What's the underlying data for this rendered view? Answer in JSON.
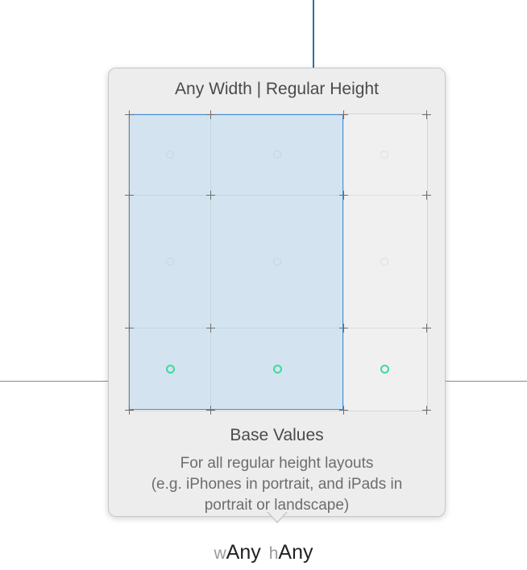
{
  "popover": {
    "title": "Any Width | Regular Height",
    "base_title": "Base Values",
    "description_lines": [
      "For all regular height layouts",
      "(e.g. iPhones in portrait, and iPads in",
      "portrait or landscape)"
    ]
  },
  "size_class": {
    "width_prefix": "w",
    "width_value": "Any",
    "height_prefix": "h",
    "height_value": "Any"
  },
  "colors": {
    "selection_fill": "#d3e4f0",
    "selection_border": "#3d8fd9",
    "active_dot": "#3fd99a",
    "constraint_line": "#2f6ea6"
  }
}
